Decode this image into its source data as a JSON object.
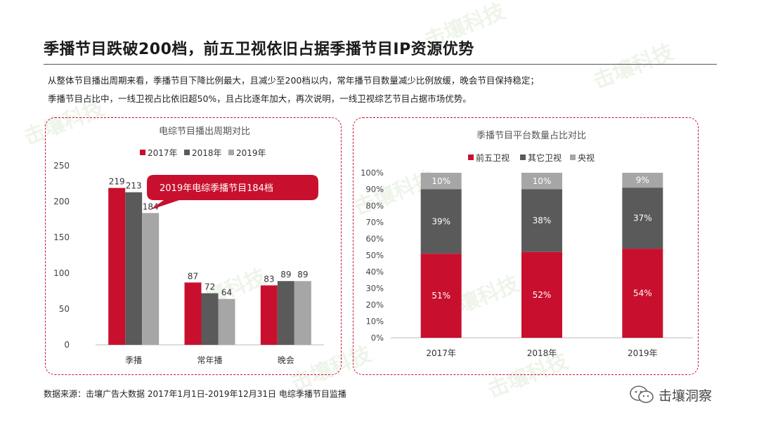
{
  "page": {
    "title": "季播节目跌破200档，前五卫视依旧占据季播节目IP资源优势",
    "summary_lines": [
      "从整体节目播出周期来看，季播节目下降比例最大，且减少至200档以内，常年播节目数量减少比例放缓，晚会节目保持稳定；",
      "季播节目占比中，一线卫视占比依旧超50%，且占比逐年加大，再次说明，一线卫视综艺节目占据市场优势。"
    ],
    "source": "数据来源：击壤广告大数据 2017年1月1日-2019年12月31日 电综季播节目监播",
    "brand_name": "击壤洞察",
    "watermark_text": "击壤科技",
    "colors": {
      "accent": "#c8102e",
      "dark_gray": "#5a5a5a",
      "light_gray": "#a6a6a6"
    }
  },
  "chart_data": [
    {
      "type": "bar",
      "title": "电综节目播出周期对比",
      "categories": [
        "季播",
        "常年播",
        "晚会"
      ],
      "series": [
        {
          "name": "2017年",
          "color": "#c8102e",
          "values": [
            219,
            87,
            83
          ]
        },
        {
          "name": "2018年",
          "color": "#5a5a5a",
          "values": [
            213,
            72,
            89
          ]
        },
        {
          "name": "2019年",
          "color": "#a6a6a6",
          "values": [
            184,
            64,
            89
          ]
        }
      ],
      "ylim": [
        0,
        250
      ],
      "yticks": [
        0,
        50,
        100,
        150,
        200,
        250
      ],
      "legend_position": "top",
      "grid": false,
      "callout": "2019年电综季播节目184档"
    },
    {
      "type": "bar",
      "stacked": true,
      "title": "季播节目平台数量占比对比",
      "categories": [
        "2017年",
        "2018年",
        "2019年"
      ],
      "series": [
        {
          "name": "前五卫视",
          "color": "#c8102e",
          "values": [
            51,
            52,
            54
          ],
          "labels": [
            "51%",
            "52%",
            "54%"
          ]
        },
        {
          "name": "其它卫视",
          "color": "#5a5a5a",
          "values": [
            39,
            38,
            37
          ],
          "labels": [
            "39%",
            "38%",
            "37%"
          ]
        },
        {
          "name": "央视",
          "color": "#a6a6a6",
          "values": [
            10,
            10,
            9
          ],
          "labels": [
            "10%",
            "10%",
            "9%"
          ]
        }
      ],
      "ylim": [
        0,
        100
      ],
      "yticks": [
        "0%",
        "10%",
        "20%",
        "30%",
        "40%",
        "50%",
        "60%",
        "70%",
        "80%",
        "90%",
        "100%"
      ],
      "legend_position": "top",
      "grid": false
    }
  ]
}
